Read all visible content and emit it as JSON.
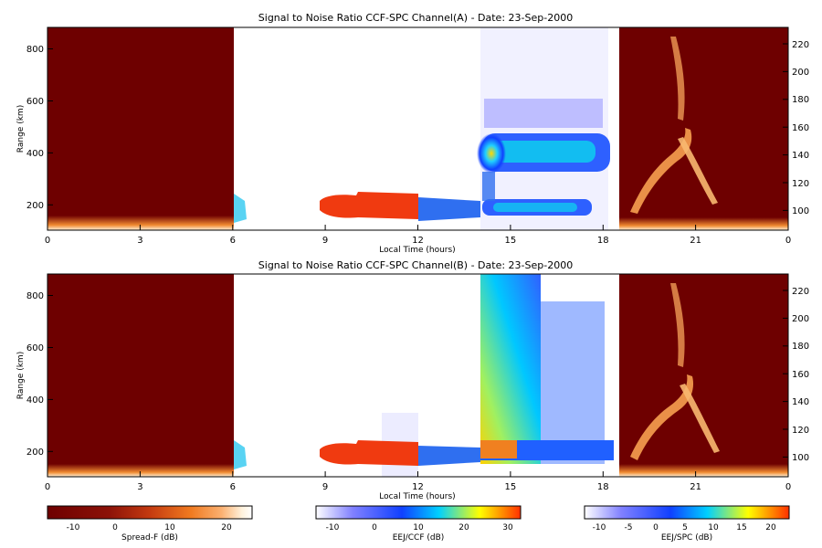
{
  "chart_data": [
    {
      "type": "heatmap",
      "title": "Signal to Noise Ratio CCF-SPC Channel(A) - Date: 23-Sep-2000",
      "xlabel": "Local Time (hours)",
      "ylabel": "Range (km)",
      "x_ticks": [
        "0",
        "3",
        "6",
        "9",
        "12",
        "15",
        "18",
        "21",
        "0"
      ],
      "y_ticks": [
        200,
        400,
        600,
        800
      ],
      "y2_ticks": [
        100,
        120,
        140,
        160,
        180,
        200,
        220
      ],
      "xlim": [
        0,
        24
      ],
      "ylim": [
        100,
        880
      ],
      "y2lim": [
        86,
        232
      ],
      "segments": [
        {
          "x": [
            0,
            6
          ],
          "scale": "Spread-F"
        },
        {
          "x": [
            6,
            14
          ],
          "scale": "EEJ/CCF"
        },
        {
          "x": [
            14,
            18.6
          ],
          "scale": "EEJ/SPC"
        },
        {
          "x": [
            18.6,
            24
          ],
          "scale": "Spread-F"
        }
      ]
    },
    {
      "type": "heatmap",
      "title": "Signal to Noise Ratio CCF-SPC Channel(B) - Date: 23-Sep-2000",
      "xlabel": "Local Time (hours)",
      "ylabel": "Range (km)",
      "x_ticks": [
        "0",
        "3",
        "6",
        "9",
        "12",
        "15",
        "18",
        "21",
        "0"
      ],
      "y_ticks": [
        200,
        400,
        600,
        800
      ],
      "y2_ticks": [
        100,
        120,
        140,
        160,
        180,
        200,
        220
      ],
      "xlim": [
        0,
        24
      ],
      "ylim": [
        100,
        880
      ],
      "y2lim": [
        86,
        232
      ],
      "segments": [
        {
          "x": [
            0,
            6
          ],
          "scale": "Spread-F"
        },
        {
          "x": [
            6,
            14
          ],
          "scale": "EEJ/CCF"
        },
        {
          "x": [
            14,
            18.6
          ],
          "scale": "EEJ/SPC"
        },
        {
          "x": [
            18.6,
            24
          ],
          "scale": "Spread-F"
        }
      ]
    }
  ],
  "colorbars": [
    {
      "label": "Spread-F (dB)",
      "ticks": [
        "-10",
        "0",
        "10",
        "20"
      ],
      "range": [
        -15,
        25
      ],
      "colors": [
        "#6e0000",
        "#8c1208",
        "#c43a10",
        "#f07a20",
        "#fbb070",
        "#fff2dc",
        "#ffffff"
      ]
    },
    {
      "label": "EEJ/CCF (dB)",
      "ticks": [
        "-10",
        "0",
        "10",
        "20",
        "30"
      ],
      "range": [
        -15,
        32
      ],
      "colors": [
        "#ffffff",
        "#8080ff",
        "#1040ff",
        "#00d0ff",
        "#ffff00",
        "#ff3000"
      ]
    },
    {
      "label": "EEJ/SPC (dB)",
      "ticks": [
        "-10",
        "-5",
        "0",
        "5",
        "10",
        "15",
        "20"
      ],
      "range": [
        -14,
        22
      ],
      "colors": [
        "#ffffff",
        "#8080ff",
        "#1040ff",
        "#00d0ff",
        "#ffff00",
        "#ff3000"
      ]
    }
  ],
  "colors": {
    "spread_background": "#6e0000",
    "axis": "#000000"
  }
}
